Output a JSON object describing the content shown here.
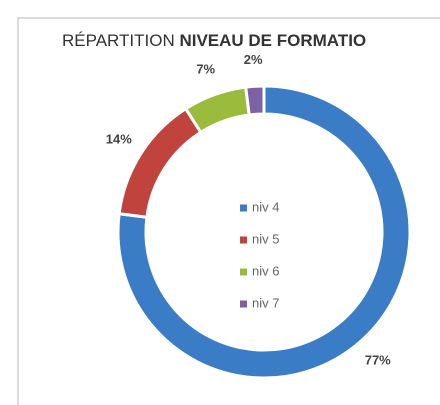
{
  "chart_data": {
    "type": "donut",
    "title": [
      "RÉPARTITION",
      "NIVEAU DE FORMATIO"
    ],
    "categories": [
      "niv 4",
      "niv 5",
      "niv 6",
      "niv 7"
    ],
    "values": [
      77,
      14,
      7,
      2
    ],
    "value_labels": [
      "77%",
      "14%",
      "7%",
      "2%"
    ],
    "colors": [
      "#3b7cc6",
      "#c0433d",
      "#9bbb3c",
      "#7d62a3"
    ],
    "legend": "center"
  }
}
